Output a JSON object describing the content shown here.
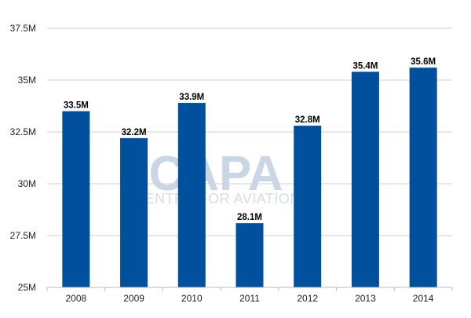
{
  "colors": {
    "bar": "#00509e",
    "grid": "#cfcfcf",
    "axis": "#bdbdbd",
    "watermark": "#c9d6e6"
  },
  "watermark": {
    "title": "CAPA",
    "subtitle": "CENTRE FOR AVIATION"
  },
  "chart_data": {
    "type": "bar",
    "categories": [
      "2008",
      "2009",
      "2010",
      "2011",
      "2012",
      "2013",
      "2014"
    ],
    "values": [
      33.5,
      32.2,
      33.9,
      28.1,
      32.8,
      35.4,
      35.6
    ],
    "value_labels": [
      "33.5M",
      "32.2M",
      "33.9M",
      "28.1M",
      "32.8M",
      "35.4M",
      "35.6M"
    ],
    "y_ticks": [
      25,
      27.5,
      30,
      32.5,
      35,
      37.5
    ],
    "y_tick_labels": [
      "25M",
      "27.5M",
      "30M",
      "32.5M",
      "35M",
      "37.5M"
    ],
    "ylim": [
      25,
      37.5
    ],
    "title": "",
    "xlabel": "",
    "ylabel": "",
    "grid": true,
    "legend": "none"
  }
}
